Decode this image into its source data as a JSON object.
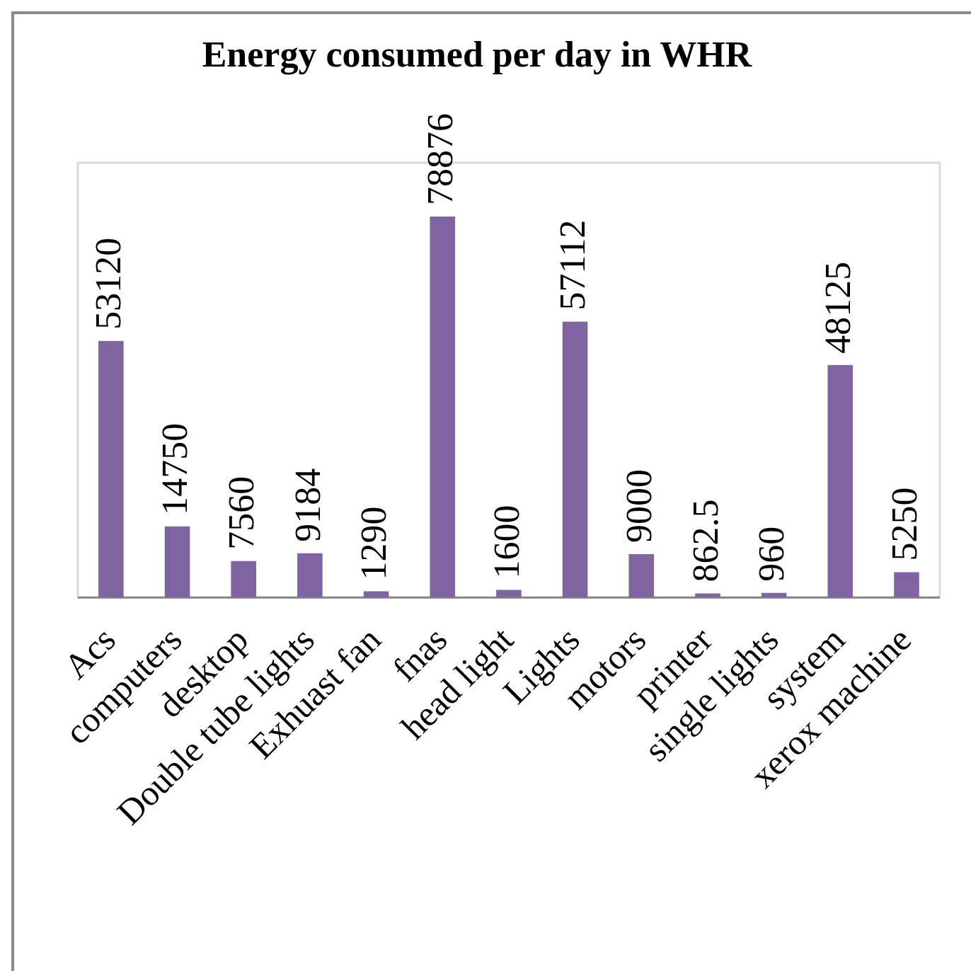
{
  "chart_data": {
    "type": "bar",
    "title": "Energy consumed per day in WHR",
    "categories": [
      "Acs",
      "computers",
      "desktop",
      "Double tube lights",
      "Exhuast fan",
      "fnas",
      "head light",
      "Lights",
      "motors",
      "printer",
      "single lights",
      "system",
      "xerox machine"
    ],
    "values": [
      53120,
      14750,
      7560,
      9184,
      1290,
      78876,
      1600,
      57112,
      9000,
      862.5,
      960,
      48125,
      5250
    ],
    "color": "#8064a2",
    "data_labels": true,
    "tick_labels": "x",
    "grid": false,
    "legend": false
  }
}
